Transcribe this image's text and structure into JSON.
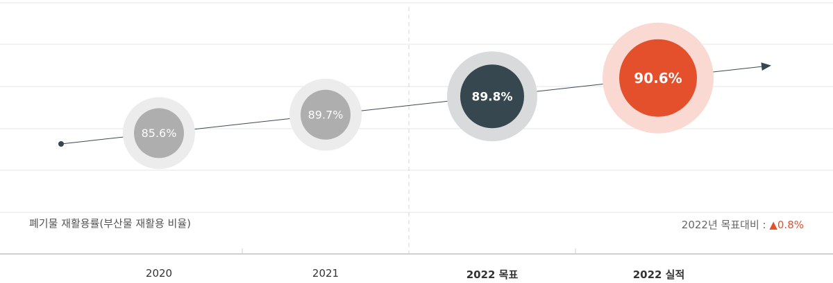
{
  "chart_data": {
    "type": "scatter",
    "categories": [
      "2020",
      "2021",
      "2022 목표",
      "2022 실적"
    ],
    "values": [
      85.6,
      89.7,
      89.8,
      90.6
    ],
    "value_labels": [
      "85.6%",
      "89.7%",
      "89.8%",
      "90.6%"
    ],
    "ylabel": "폐기물 재활용률(부산물 재활용 비율)",
    "annotation": {
      "prefix": "2022년 목표대비 : ",
      "delta": "▲0.8%"
    },
    "colors": {
      "past": "#aeaeae",
      "past_halo": "#ececec",
      "target": "#37474f",
      "target_halo": "#d9dadb",
      "actual": "#e4502c",
      "actual_halo": "#f9d9d2",
      "grid": "#e6e6e6",
      "trend": "#37474f"
    },
    "grid": true
  }
}
